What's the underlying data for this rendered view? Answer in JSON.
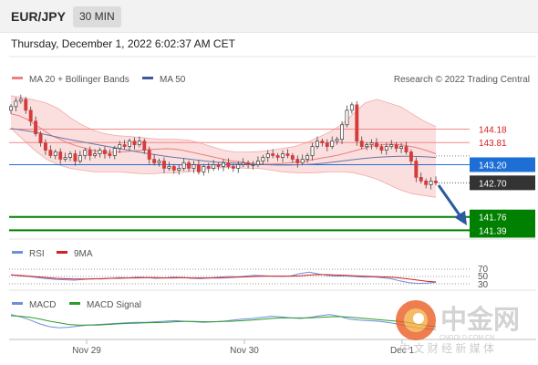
{
  "header": {
    "pair": "EUR/JPY",
    "timeframe": "30 MIN"
  },
  "datetime": "Thursday, December 1, 2022 6:02:37 AM CET",
  "price_panel": {
    "legend": [
      {
        "label": "MA 20 + Bollinger Bands",
        "color": "#f08080"
      },
      {
        "label": "MA 50",
        "color": "#3c5a9a"
      }
    ],
    "credit": "Research © 2022 Trading Central"
  },
  "rsi_panel": {
    "legend": [
      {
        "label": "RSI",
        "color": "#6f8fd8"
      },
      {
        "label": "9MA",
        "color": "#d62020"
      }
    ],
    "levels": [
      "70",
      "50",
      "30"
    ]
  },
  "macd_panel": {
    "legend": [
      {
        "label": "MACD",
        "color": "#6f8fd8"
      },
      {
        "label": "MACD Signal",
        "color": "#2f9a2f"
      }
    ]
  },
  "x_axis": {
    "labels": [
      "Nov 29",
      "Nov 30",
      "Dec 1"
    ]
  },
  "watermark": {
    "logo_text": "中金网",
    "sub_text": "CNGOLD.COM.CN",
    "tagline": "中 文 财 经 新 媒 体"
  },
  "chart_data": {
    "type": "candlestick",
    "title": "EUR/JPY 30 MIN",
    "ylim": [
      141.25,
      145.35
    ],
    "key_levels": [
      {
        "value": 144.18,
        "label": "144.18",
        "kind": "resistance",
        "color": "#d62020"
      },
      {
        "value": 143.81,
        "label": "143.81",
        "kind": "resistance",
        "color": "#d62020"
      },
      {
        "value": 143.2,
        "label": "143.20",
        "kind": "pivot",
        "color": "#1d6fd6"
      },
      {
        "value": 142.7,
        "label": "142.70",
        "kind": "last_price",
        "color": "#333333"
      },
      {
        "value": 141.76,
        "label": "141.76",
        "kind": "support",
        "color": "#008000"
      },
      {
        "value": 141.39,
        "label": "141.39",
        "kind": "support",
        "color": "#008000"
      }
    ],
    "closes": [
      144.8,
      144.95,
      145.0,
      144.7,
      144.4,
      144.05,
      143.8,
      143.6,
      143.45,
      143.55,
      143.35,
      143.4,
      143.5,
      143.3,
      143.45,
      143.6,
      143.45,
      143.5,
      143.6,
      143.5,
      143.45,
      143.65,
      143.75,
      143.7,
      143.85,
      143.75,
      143.85,
      143.6,
      143.35,
      143.25,
      143.3,
      143.1,
      143.15,
      143.05,
      143.1,
      143.25,
      143.1,
      143.2,
      143.0,
      143.15,
      143.1,
      143.2,
      143.15,
      143.25,
      143.15,
      143.1,
      143.2,
      143.25,
      143.2,
      143.2,
      143.3,
      143.4,
      143.5,
      143.45,
      143.4,
      143.5,
      143.45,
      143.35,
      143.25,
      143.35,
      143.45,
      143.7,
      143.85,
      143.8,
      143.7,
      143.85,
      143.9,
      144.3,
      144.7,
      144.85,
      143.85,
      143.7,
      143.75,
      143.8,
      143.7,
      143.6,
      143.7,
      143.75,
      143.65,
      143.7,
      143.55,
      143.3,
      142.85,
      142.75,
      142.65,
      142.75,
      142.7
    ],
    "ma20": [
      144.6,
      144.55,
      144.45,
      144.3,
      144.15,
      144.0,
      143.9,
      143.8,
      143.72,
      143.66,
      143.6,
      143.56,
      143.54,
      143.55,
      143.56,
      143.58,
      143.6,
      143.62,
      143.63,
      143.64,
      143.63,
      143.6,
      143.55,
      143.5,
      143.45,
      143.4,
      143.35,
      143.3,
      143.28,
      143.25,
      143.23,
      143.22,
      143.22,
      143.23,
      143.25,
      143.27,
      143.3,
      143.34,
      143.38,
      143.42,
      143.46,
      143.52,
      143.58,
      143.64,
      143.7,
      143.74,
      143.76,
      143.76,
      143.74,
      143.7,
      143.65,
      143.58,
      143.5
    ],
    "ma50": [
      144.2,
      144.15,
      144.1,
      144.02,
      143.95,
      143.88,
      143.82,
      143.76,
      143.7,
      143.64,
      143.58,
      143.52,
      143.47,
      143.42,
      143.38,
      143.34,
      143.3,
      143.27,
      143.25,
      143.23,
      143.21,
      143.2,
      143.19,
      143.19,
      143.2,
      143.22,
      143.25,
      143.29,
      143.33,
      143.37,
      143.4,
      143.42,
      143.43,
      143.43,
      143.42,
      143.4
    ],
    "bb_upper": [
      145.1,
      145.05,
      144.98,
      144.9,
      144.75,
      144.5,
      144.3,
      144.15,
      144.05,
      144.0,
      143.98,
      143.95,
      143.92,
      143.9,
      143.9,
      143.88,
      143.8,
      143.7,
      143.6,
      143.55,
      143.55,
      143.56,
      143.6,
      143.65,
      143.7,
      143.8,
      143.95,
      144.1,
      144.3,
      144.6,
      144.9,
      145.0,
      144.9,
      144.8,
      144.6,
      144.4,
      144.25
    ],
    "bb_lower": [
      144.2,
      143.9,
      143.6,
      143.35,
      143.2,
      143.1,
      143.05,
      143.0,
      143.0,
      143.0,
      142.98,
      142.95,
      142.95,
      142.97,
      142.98,
      143.0,
      143.05,
      143.1,
      143.12,
      143.12,
      143.1,
      143.1,
      143.05,
      143.0,
      142.98,
      142.97,
      142.98,
      143.0,
      143.0,
      142.98,
      142.9,
      142.8,
      142.65,
      142.5,
      142.4,
      142.35,
      142.3
    ],
    "rsi": [
      55,
      52,
      50,
      47,
      44,
      42,
      41,
      40,
      42,
      44,
      43,
      45,
      47,
      46,
      48,
      47,
      45,
      46,
      48,
      47,
      45,
      44,
      46,
      48,
      50,
      49,
      51,
      53,
      52,
      51,
      50,
      52,
      58,
      62,
      57,
      53,
      51,
      52,
      50,
      48,
      49,
      47,
      44,
      38,
      33,
      31,
      32,
      34
    ],
    "rsi_ma": [
      54,
      53,
      51,
      49,
      47,
      45,
      44,
      43,
      43,
      43,
      44,
      45,
      45,
      46,
      46,
      47,
      47,
      46,
      46,
      47,
      46,
      46,
      46,
      46,
      47,
      48,
      49,
      50,
      51,
      51,
      51,
      51,
      52,
      54,
      55,
      55,
      54,
      53,
      52,
      51,
      50,
      49,
      48,
      46,
      43,
      40,
      37,
      35
    ],
    "macd": [
      0.12,
      0.08,
      0.02,
      -0.05,
      -0.1,
      -0.12,
      -0.11,
      -0.09,
      -0.07,
      -0.06,
      -0.05,
      -0.04,
      -0.03,
      -0.02,
      -0.02,
      -0.01,
      0.0,
      0.01,
      0.0,
      -0.01,
      -0.02,
      -0.01,
      0.0,
      0.02,
      0.04,
      0.05,
      0.07,
      0.09,
      0.08,
      0.06,
      0.05,
      0.07,
      0.1,
      0.12,
      0.09,
      0.04,
      0.02,
      0.01,
      0.0,
      -0.02,
      -0.05,
      -0.09,
      -0.12,
      -0.14,
      -0.15
    ],
    "macd_signal": [
      0.1,
      0.09,
      0.07,
      0.04,
      0.0,
      -0.03,
      -0.06,
      -0.07,
      -0.07,
      -0.07,
      -0.06,
      -0.05,
      -0.04,
      -0.035,
      -0.03,
      -0.025,
      -0.02,
      -0.01,
      -0.005,
      -0.005,
      -0.01,
      -0.01,
      -0.005,
      0.0,
      0.01,
      0.02,
      0.035,
      0.05,
      0.06,
      0.06,
      0.06,
      0.06,
      0.07,
      0.08,
      0.085,
      0.075,
      0.06,
      0.045,
      0.03,
      0.015,
      0.0,
      -0.02,
      -0.05,
      -0.08,
      -0.1
    ]
  }
}
